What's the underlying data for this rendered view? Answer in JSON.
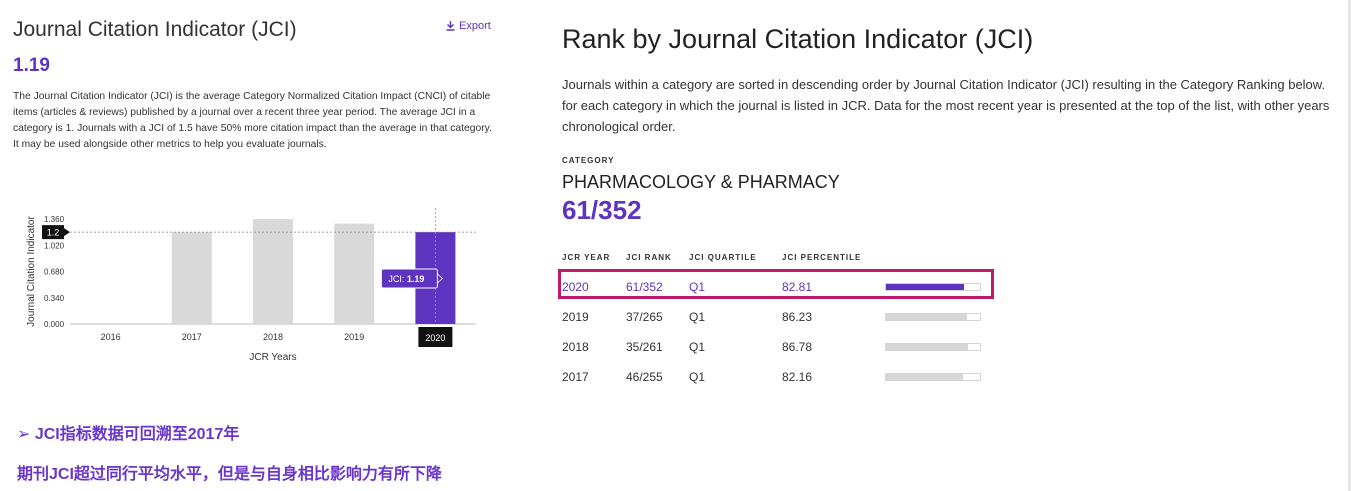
{
  "jci": {
    "title": "Journal Citation Indicator (JCI)",
    "export_label": "Export",
    "value": "1.19",
    "description": "The Journal Citation Indicator (JCI) is the average Category Normalized Citation Impact (CNCI) of citable items (articles & reviews) published by a journal over a recent three year period. The average JCI in a category is 1. Journals with a JCI of 1.5 have 50% more citation impact than the average in that category. It may be used alongside other metrics to help you evaluate journals."
  },
  "chart_data": {
    "type": "bar",
    "categories": [
      "2016",
      "2017",
      "2018",
      "2019",
      "2020"
    ],
    "values": [
      null,
      1.19,
      1.36,
      1.3,
      1.19
    ],
    "xlabel": "JCR Years",
    "ylabel": "Journal Citation Indicator",
    "yticks": [
      "0.000",
      "0.340",
      "0.680",
      "1.020",
      "1.360"
    ],
    "ylim": [
      0,
      1.36
    ],
    "reference_line": {
      "value": 1.19,
      "label": "1.2"
    },
    "tooltip": {
      "prefix": "JCI: ",
      "value": "1.19"
    },
    "highlight_category": "2020",
    "colors": {
      "default": "#d9d9d9",
      "highlight": "#5e33bf"
    }
  },
  "rank": {
    "title": "Rank by Journal Citation Indicator (JCI)",
    "description_lines": [
      "Journals within a category are sorted in descending order by Journal Citation Indicator (JCI) resulting in the Category Ranking below.",
      "for each category in which the journal is listed in JCR. Data for the most recent year is presented at the top of the list, with other years",
      "chronological order."
    ],
    "category_label": "CATEGORY",
    "category_name": "PHARMACOLOGY & PHARMACY",
    "category_rank": "61/352",
    "columns": [
      "JCR YEAR",
      "JCI RANK",
      "JCI QUARTILE",
      "JCI PERCENTILE"
    ],
    "rows": [
      {
        "year": "2020",
        "rank": "61/352",
        "quartile": "Q1",
        "percentile": "82.81",
        "active": true
      },
      {
        "year": "2019",
        "rank": "37/265",
        "quartile": "Q1",
        "percentile": "86.23",
        "active": false
      },
      {
        "year": "2018",
        "rank": "35/261",
        "quartile": "Q1",
        "percentile": "86.78",
        "active": false
      },
      {
        "year": "2017",
        "rank": "46/255",
        "quartile": "Q1",
        "percentile": "82.16",
        "active": false
      }
    ]
  },
  "notes": {
    "line1": "➢ JCI指标数据可回溯至2017年",
    "line2": "期刊JCI超过同行平均水平，但是与自身相比影响力有所下降"
  },
  "colors": {
    "accent": "#5e33bf",
    "highlight_border": "#c0186c"
  }
}
